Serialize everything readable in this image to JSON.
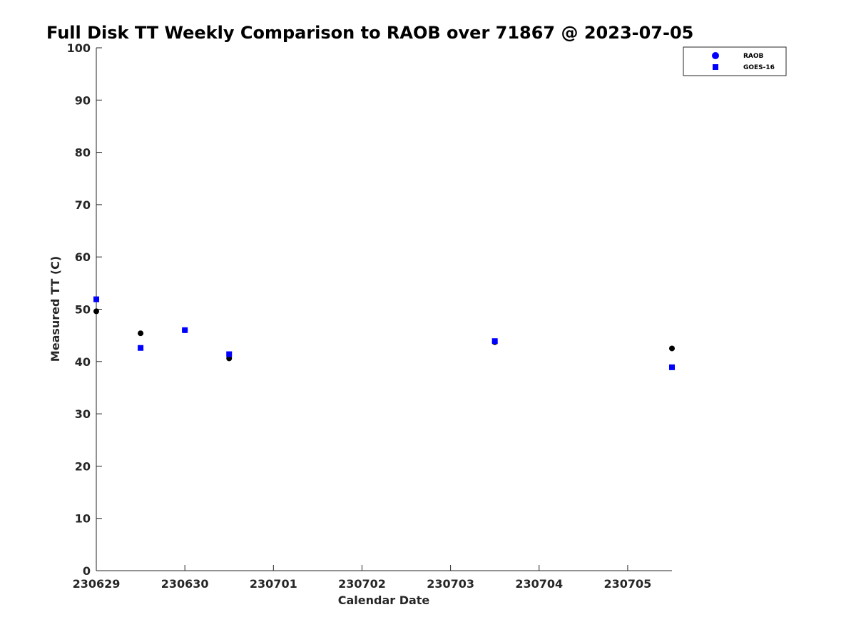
{
  "chart_data": {
    "type": "scatter",
    "title": "Full Disk TT Weekly Comparison to RAOB over 71867 @ 2023-07-05",
    "xlabel": "Calendar Date",
    "ylabel": "Measured TT (C)",
    "ylim": [
      0,
      100
    ],
    "yticks": [
      "0",
      "10",
      "20",
      "30",
      "40",
      "50",
      "60",
      "70",
      "80",
      "90",
      "100"
    ],
    "xlim": [
      "2023-06-29 00:00",
      "2023-07-05 12:00"
    ],
    "xticks": [
      "230629",
      "230630",
      "230701",
      "230702",
      "230703",
      "230704",
      "230705"
    ],
    "grid": false,
    "legend_position": "top-right",
    "series": [
      {
        "name": "RAOB",
        "marker": "circle",
        "color": "#000000",
        "legend_color": "#0000ff",
        "points": [
          {
            "x": "2023-06-29 00:00",
            "y": 49.6
          },
          {
            "x": "2023-06-29 12:00",
            "y": 45.4
          },
          {
            "x": "2023-06-30 00:00",
            "y": 46.0
          },
          {
            "x": "2023-06-30 12:00",
            "y": 40.6
          },
          {
            "x": "2023-07-03 12:00",
            "y": 43.7
          },
          {
            "x": "2023-07-05 12:00",
            "y": 42.5
          }
        ]
      },
      {
        "name": "GOES-16",
        "marker": "square",
        "color": "#0000ff",
        "points": [
          {
            "x": "2023-06-29 00:00",
            "y": 51.9
          },
          {
            "x": "2023-06-29 12:00",
            "y": 42.6
          },
          {
            "x": "2023-06-30 00:00",
            "y": 46.0
          },
          {
            "x": "2023-06-30 12:00",
            "y": 41.4
          },
          {
            "x": "2023-07-03 12:00",
            "y": 43.9
          },
          {
            "x": "2023-07-05 12:00",
            "y": 38.9
          }
        ]
      }
    ]
  }
}
